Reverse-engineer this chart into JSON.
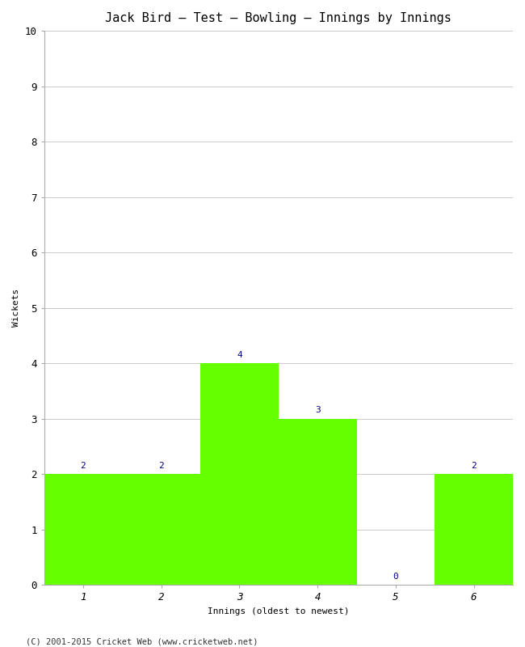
{
  "title": "Jack Bird – Test – Bowling – Innings by Innings",
  "xlabel": "Innings (oldest to newest)",
  "ylabel": "Wickets",
  "categories": [
    1,
    2,
    3,
    4,
    5,
    6
  ],
  "values": [
    2,
    2,
    4,
    3,
    0,
    2
  ],
  "bar_color": "#66ff00",
  "label_color": "#000080",
  "ylim": [
    0,
    10
  ],
  "yticks": [
    0,
    1,
    2,
    3,
    4,
    5,
    6,
    7,
    8,
    9,
    10
  ],
  "xticks": [
    1,
    2,
    3,
    4,
    5,
    6
  ],
  "background_color": "#ffffff",
  "grid_color": "#cccccc",
  "footer": "(C) 2001-2015 Cricket Web (www.cricketweb.net)",
  "title_fontsize": 11,
  "axis_label_fontsize": 8,
  "tick_fontsize": 9,
  "bar_label_fontsize": 8,
  "footer_fontsize": 7.5
}
